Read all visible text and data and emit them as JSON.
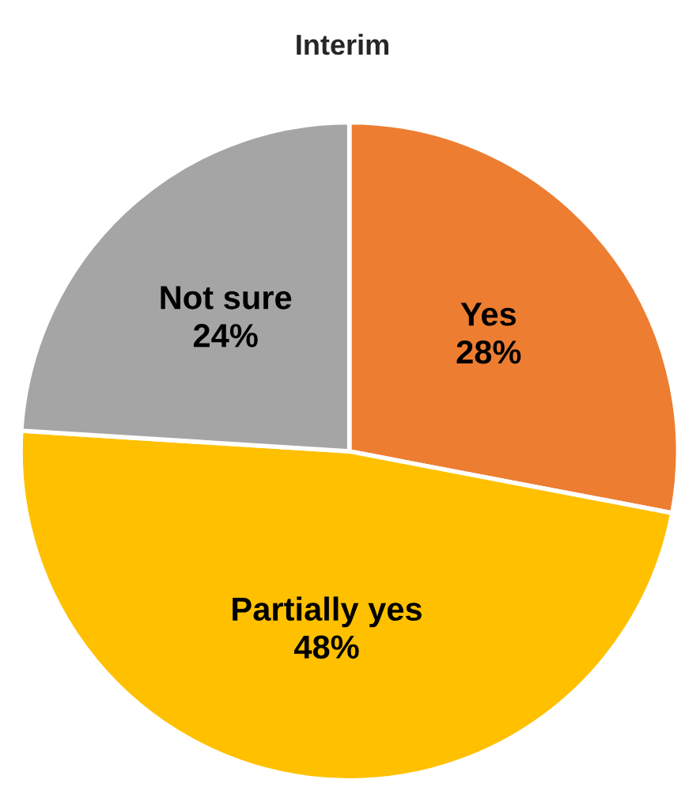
{
  "chart_data": {
    "type": "pie",
    "title": "Interim",
    "categories": [
      "Yes",
      "Partially yes",
      "Not sure"
    ],
    "values": [
      28,
      48,
      24
    ],
    "value_labels": [
      "28%",
      "48%",
      "24%"
    ],
    "colors": [
      "#ed7d31",
      "#ffc000",
      "#a5a5a5"
    ],
    "legend": false
  }
}
